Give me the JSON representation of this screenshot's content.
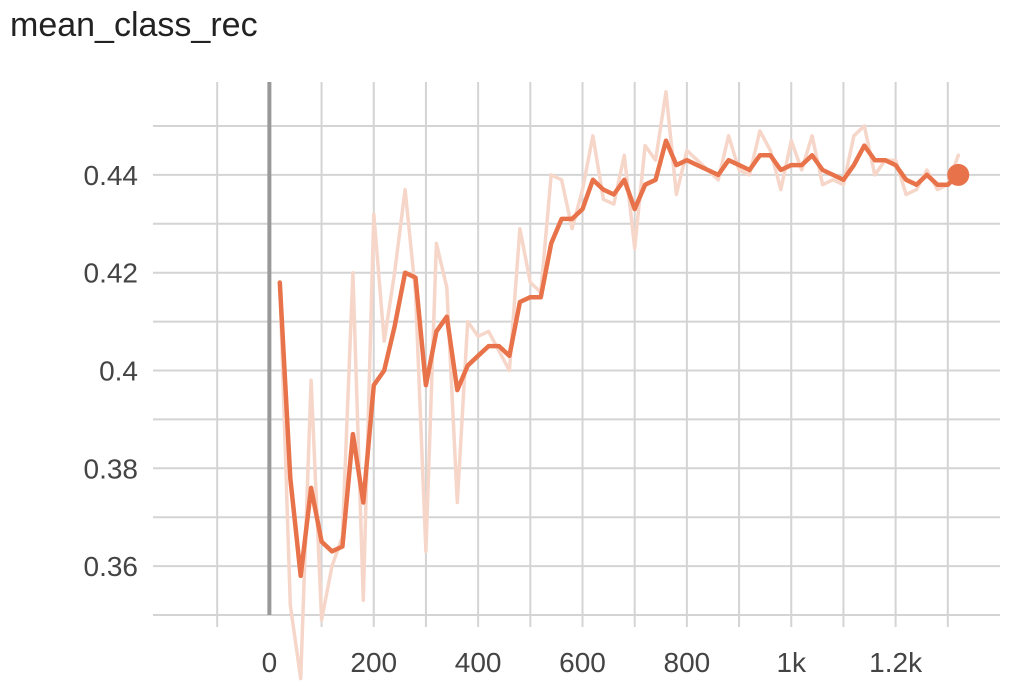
{
  "chart_data": {
    "type": "line",
    "title": "mean_class_rec",
    "xlabel": "",
    "ylabel": "",
    "xlim": [
      -200,
      1400
    ],
    "ylim": [
      0.35,
      0.459
    ],
    "grid": true,
    "x_ticks": [
      {
        "value": 0,
        "label": "0"
      },
      {
        "value": 200,
        "label": "200"
      },
      {
        "value": 400,
        "label": "400"
      },
      {
        "value": 600,
        "label": "600"
      },
      {
        "value": 800,
        "label": "800"
      },
      {
        "value": 1000,
        "label": "1k"
      },
      {
        "value": 1200,
        "label": "1.2k"
      }
    ],
    "y_ticks": [
      {
        "value": 0.36,
        "label": "0.36"
      },
      {
        "value": 0.38,
        "label": "0.38"
      },
      {
        "value": 0.4,
        "label": "0.4"
      },
      {
        "value": 0.42,
        "label": "0.42"
      },
      {
        "value": 0.44,
        "label": "0.44"
      }
    ],
    "colors": {
      "smoothed": "#e8734a",
      "raw": "#f7d6ca",
      "grid": "#d4d4d4",
      "zero_line": "#999999"
    },
    "series": [
      {
        "role": "raw",
        "x": [
          20,
          40,
          60,
          80,
          100,
          120,
          140,
          160,
          180,
          200,
          220,
          240,
          260,
          280,
          300,
          320,
          340,
          360,
          380,
          400,
          420,
          440,
          460,
          480,
          500,
          520,
          540,
          560,
          580,
          600,
          620,
          640,
          660,
          680,
          700,
          720,
          740,
          760,
          780,
          800,
          820,
          840,
          860,
          880,
          900,
          920,
          940,
          960,
          980,
          1000,
          1020,
          1040,
          1060,
          1080,
          1100,
          1120,
          1140,
          1160,
          1180,
          1200,
          1220,
          1240,
          1260,
          1280,
          1300,
          1320
        ],
        "y": [
          0.418,
          0.352,
          0.337,
          0.398,
          0.349,
          0.36,
          0.366,
          0.42,
          0.353,
          0.432,
          0.406,
          0.42,
          0.437,
          0.416,
          0.363,
          0.426,
          0.417,
          0.373,
          0.41,
          0.407,
          0.408,
          0.404,
          0.4,
          0.429,
          0.418,
          0.416,
          0.44,
          0.439,
          0.429,
          0.437,
          0.448,
          0.435,
          0.434,
          0.444,
          0.425,
          0.446,
          0.443,
          0.457,
          0.436,
          0.445,
          0.443,
          0.441,
          0.439,
          0.448,
          0.441,
          0.44,
          0.449,
          0.445,
          0.437,
          0.447,
          0.441,
          0.448,
          0.438,
          0.439,
          0.438,
          0.448,
          0.45,
          0.44,
          0.443,
          0.443,
          0.436,
          0.437,
          0.441,
          0.437,
          0.438,
          0.444
        ]
      },
      {
        "role": "smoothed",
        "x": [
          20,
          40,
          60,
          80,
          100,
          120,
          140,
          160,
          180,
          200,
          220,
          240,
          260,
          280,
          300,
          320,
          340,
          360,
          380,
          400,
          420,
          440,
          460,
          480,
          500,
          520,
          540,
          560,
          580,
          600,
          620,
          640,
          660,
          680,
          700,
          720,
          740,
          760,
          780,
          800,
          820,
          840,
          860,
          880,
          900,
          920,
          940,
          960,
          980,
          1000,
          1020,
          1040,
          1060,
          1080,
          1100,
          1120,
          1140,
          1160,
          1180,
          1200,
          1220,
          1240,
          1260,
          1280,
          1300,
          1320
        ],
        "y": [
          0.418,
          0.378,
          0.358,
          0.376,
          0.365,
          0.363,
          0.364,
          0.387,
          0.373,
          0.397,
          0.4,
          0.409,
          0.42,
          0.419,
          0.397,
          0.408,
          0.411,
          0.396,
          0.401,
          0.403,
          0.405,
          0.405,
          0.403,
          0.414,
          0.415,
          0.415,
          0.426,
          0.431,
          0.431,
          0.433,
          0.439,
          0.437,
          0.436,
          0.439,
          0.433,
          0.438,
          0.439,
          0.447,
          0.442,
          0.443,
          0.442,
          0.441,
          0.44,
          0.443,
          0.442,
          0.441,
          0.444,
          0.444,
          0.441,
          0.442,
          0.442,
          0.444,
          0.441,
          0.44,
          0.439,
          0.442,
          0.446,
          0.443,
          0.443,
          0.442,
          0.439,
          0.438,
          0.44,
          0.438,
          0.438,
          0.44
        ]
      }
    ]
  }
}
